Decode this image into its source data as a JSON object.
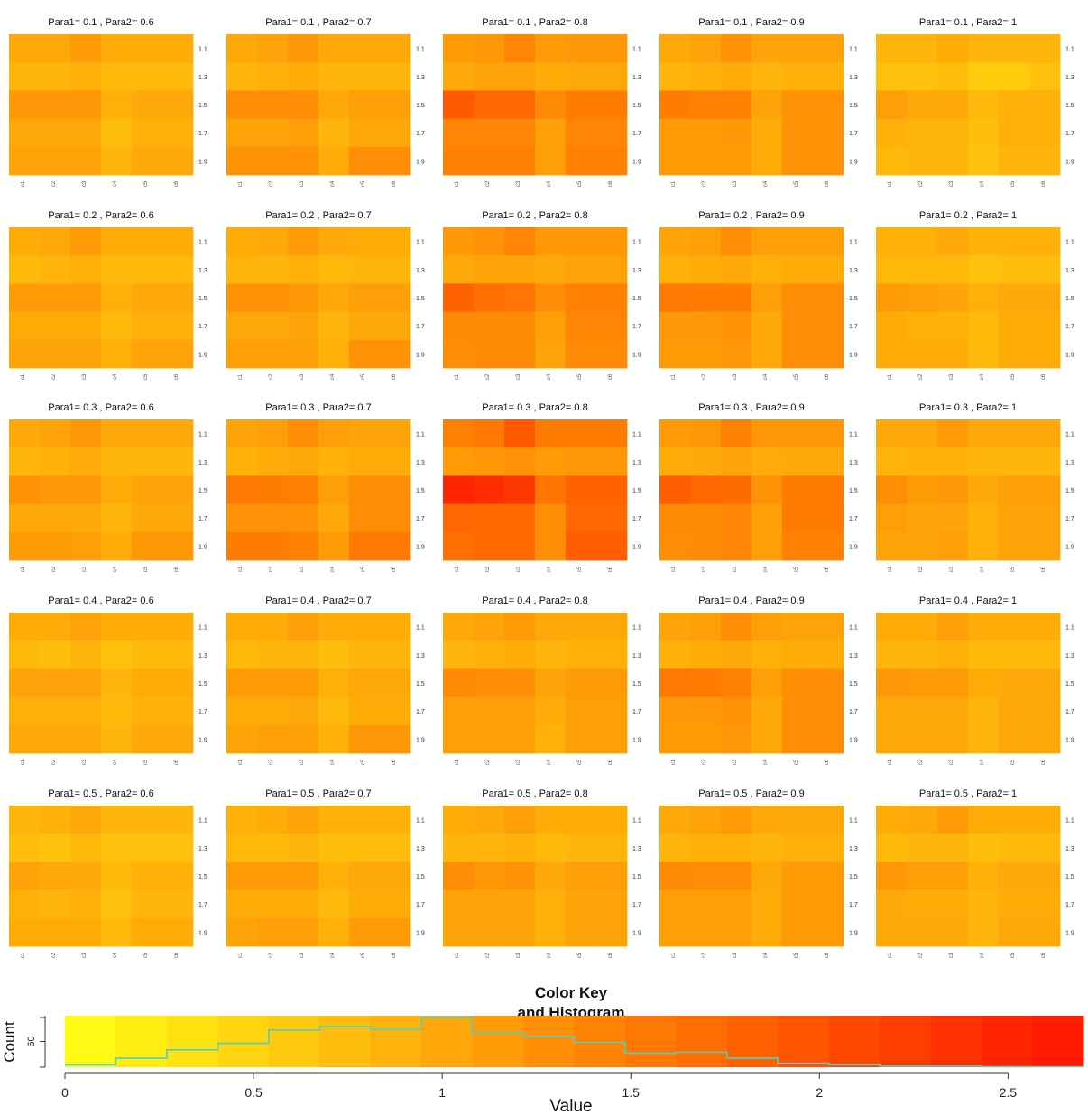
{
  "chart_data": {
    "type": "heatmap",
    "description_free": true,
    "para1_values": [
      "0.1",
      "0.2",
      "0.3",
      "0.4",
      "0.5"
    ],
    "para2_values": [
      "0.6",
      "0.7",
      "0.8",
      "0.9",
      "1"
    ],
    "panel_title_template": "Para1= {p1} , Para2= {p2}",
    "row_tick_labels": [
      "1.1",
      "1.3",
      "1.5",
      "1.7",
      "1.9"
    ],
    "col_tick_labels": [
      "c1",
      "c2",
      "c3",
      "c4",
      "c5",
      "c6"
    ],
    "panels": [
      {
        "p1": "0.1",
        "p2": "0.6",
        "values": [
          [
            1.0,
            1.0,
            1.15,
            0.95,
            0.95,
            0.95
          ],
          [
            0.85,
            0.85,
            0.9,
            0.8,
            0.8,
            0.8
          ],
          [
            1.2,
            1.2,
            1.2,
            0.9,
            1.0,
            1.0
          ],
          [
            1.0,
            1.0,
            1.0,
            0.75,
            0.9,
            0.9
          ],
          [
            1.05,
            1.05,
            1.05,
            0.85,
            1.0,
            1.0
          ]
        ]
      },
      {
        "p1": "0.1",
        "p2": "0.7",
        "values": [
          [
            1.0,
            1.05,
            1.2,
            1.0,
            1.0,
            1.0
          ],
          [
            0.85,
            0.9,
            0.95,
            0.85,
            0.85,
            0.85
          ],
          [
            1.3,
            1.3,
            1.3,
            1.0,
            1.1,
            1.1
          ],
          [
            1.05,
            1.05,
            1.1,
            0.85,
            1.0,
            1.0
          ],
          [
            1.25,
            1.25,
            1.25,
            0.95,
            1.3,
            1.3
          ]
        ]
      },
      {
        "p1": "0.1",
        "p2": "0.8",
        "values": [
          [
            1.15,
            1.2,
            1.4,
            1.15,
            1.2,
            1.2
          ],
          [
            1.0,
            1.05,
            1.05,
            0.95,
            1.0,
            1.0
          ],
          [
            1.9,
            1.75,
            1.75,
            1.35,
            1.5,
            1.5
          ],
          [
            1.4,
            1.4,
            1.4,
            1.1,
            1.4,
            1.4
          ],
          [
            1.45,
            1.45,
            1.45,
            1.1,
            1.45,
            1.45
          ]
        ]
      },
      {
        "p1": "0.1",
        "p2": "0.9",
        "values": [
          [
            1.0,
            1.05,
            1.25,
            1.05,
            1.05,
            1.05
          ],
          [
            0.85,
            0.9,
            0.95,
            0.85,
            0.9,
            0.9
          ],
          [
            1.5,
            1.45,
            1.45,
            1.05,
            1.25,
            1.25
          ],
          [
            1.15,
            1.15,
            1.2,
            0.95,
            1.25,
            1.25
          ],
          [
            1.15,
            1.15,
            1.15,
            0.95,
            1.25,
            1.25
          ]
        ]
      },
      {
        "p1": "0.1",
        "p2": "1",
        "values": [
          [
            0.85,
            0.85,
            0.95,
            0.85,
            0.85,
            0.85
          ],
          [
            0.7,
            0.7,
            0.75,
            0.6,
            0.6,
            0.7
          ],
          [
            1.1,
            1.0,
            1.0,
            0.8,
            0.9,
            0.9
          ],
          [
            0.9,
            0.85,
            0.85,
            0.75,
            0.9,
            0.9
          ],
          [
            0.8,
            0.85,
            0.85,
            0.7,
            0.85,
            0.85
          ]
        ]
      },
      {
        "p1": "0.2",
        "p2": "0.6",
        "values": [
          [
            0.95,
            1.0,
            1.15,
            0.95,
            0.95,
            0.95
          ],
          [
            0.8,
            0.85,
            0.9,
            0.8,
            0.8,
            0.8
          ],
          [
            1.15,
            1.15,
            1.15,
            0.9,
            1.0,
            1.0
          ],
          [
            0.95,
            0.95,
            0.95,
            0.8,
            0.9,
            0.9
          ],
          [
            1.05,
            1.05,
            1.05,
            0.9,
            1.05,
            1.05
          ]
        ]
      },
      {
        "p1": "0.2",
        "p2": "0.7",
        "values": [
          [
            0.95,
            1.0,
            1.15,
            1.0,
            0.95,
            0.95
          ],
          [
            0.85,
            0.85,
            0.9,
            0.8,
            0.85,
            0.85
          ],
          [
            1.25,
            1.25,
            1.2,
            1.0,
            1.1,
            1.1
          ],
          [
            1.0,
            1.0,
            1.05,
            0.85,
            1.0,
            1.0
          ],
          [
            1.1,
            1.1,
            1.1,
            0.9,
            1.25,
            1.25
          ]
        ]
      },
      {
        "p1": "0.2",
        "p2": "0.8",
        "values": [
          [
            1.2,
            1.25,
            1.4,
            1.2,
            1.2,
            1.2
          ],
          [
            1.0,
            1.05,
            1.05,
            1.0,
            1.05,
            1.05
          ],
          [
            1.8,
            1.65,
            1.6,
            1.3,
            1.45,
            1.45
          ],
          [
            1.35,
            1.35,
            1.35,
            1.1,
            1.4,
            1.4
          ],
          [
            1.3,
            1.35,
            1.35,
            1.05,
            1.35,
            1.35
          ]
        ]
      },
      {
        "p1": "0.2",
        "p2": "0.9",
        "values": [
          [
            1.05,
            1.1,
            1.3,
            1.1,
            1.1,
            1.1
          ],
          [
            0.9,
            0.95,
            1.0,
            0.9,
            0.95,
            0.95
          ],
          [
            1.55,
            1.5,
            1.5,
            1.1,
            1.3,
            1.3
          ],
          [
            1.2,
            1.2,
            1.25,
            1.0,
            1.3,
            1.3
          ],
          [
            1.15,
            1.15,
            1.2,
            1.0,
            1.3,
            1.3
          ]
        ]
      },
      {
        "p1": "0.2",
        "p2": "1",
        "values": [
          [
            0.9,
            0.9,
            1.0,
            0.9,
            0.9,
            0.9
          ],
          [
            0.8,
            0.8,
            0.8,
            0.7,
            0.75,
            0.75
          ],
          [
            1.15,
            1.1,
            1.05,
            0.9,
            1.0,
            1.0
          ],
          [
            0.95,
            0.9,
            0.9,
            0.8,
            0.95,
            0.95
          ],
          [
            0.95,
            0.95,
            0.95,
            0.8,
            0.95,
            0.95
          ]
        ]
      },
      {
        "p1": "0.3",
        "p2": "0.6",
        "values": [
          [
            1.0,
            1.05,
            1.2,
            1.0,
            1.0,
            1.0
          ],
          [
            0.85,
            0.9,
            0.95,
            0.85,
            0.85,
            0.85
          ],
          [
            1.25,
            1.2,
            1.2,
            0.95,
            1.05,
            1.05
          ],
          [
            1.0,
            1.0,
            1.0,
            0.85,
            1.0,
            1.0
          ],
          [
            1.15,
            1.15,
            1.1,
            0.95,
            1.2,
            1.2
          ]
        ]
      },
      {
        "p1": "0.3",
        "p2": "0.7",
        "values": [
          [
            1.05,
            1.1,
            1.3,
            1.1,
            1.05,
            1.05
          ],
          [
            0.9,
            0.95,
            1.0,
            0.9,
            0.95,
            0.95
          ],
          [
            1.55,
            1.5,
            1.45,
            1.1,
            1.3,
            1.3
          ],
          [
            1.25,
            1.25,
            1.25,
            1.0,
            1.3,
            1.3
          ],
          [
            1.5,
            1.5,
            1.45,
            1.15,
            1.55,
            1.55
          ]
        ]
      },
      {
        "p1": "0.3",
        "p2": "0.8",
        "values": [
          [
            1.45,
            1.55,
            1.9,
            1.5,
            1.5,
            1.5
          ],
          [
            1.15,
            1.2,
            1.25,
            1.15,
            1.2,
            1.2
          ],
          [
            2.5,
            2.4,
            2.3,
            1.6,
            1.8,
            1.8
          ],
          [
            1.75,
            1.7,
            1.7,
            1.3,
            1.75,
            1.75
          ],
          [
            1.65,
            1.7,
            1.7,
            1.3,
            1.85,
            1.85
          ]
        ]
      },
      {
        "p1": "0.3",
        "p2": "0.9",
        "values": [
          [
            1.15,
            1.2,
            1.45,
            1.2,
            1.2,
            1.2
          ],
          [
            0.95,
            1.0,
            1.05,
            0.95,
            1.0,
            1.0
          ],
          [
            1.85,
            1.75,
            1.7,
            1.25,
            1.5,
            1.5
          ],
          [
            1.35,
            1.35,
            1.4,
            1.1,
            1.5,
            1.5
          ],
          [
            1.3,
            1.35,
            1.4,
            1.1,
            1.45,
            1.45
          ]
        ]
      },
      {
        "p1": "0.3",
        "p2": "1",
        "values": [
          [
            1.0,
            1.0,
            1.15,
            1.0,
            1.0,
            1.0
          ],
          [
            0.85,
            0.9,
            0.9,
            0.85,
            0.85,
            0.85
          ],
          [
            1.3,
            1.15,
            1.2,
            1.0,
            1.1,
            1.1
          ],
          [
            1.1,
            1.05,
            1.05,
            0.9,
            1.05,
            1.05
          ],
          [
            1.05,
            1.05,
            1.1,
            0.9,
            1.05,
            1.05
          ]
        ]
      },
      {
        "p1": "0.4",
        "p2": "0.6",
        "values": [
          [
            0.95,
            0.95,
            1.05,
            0.95,
            0.95,
            0.95
          ],
          [
            0.8,
            0.75,
            0.85,
            0.7,
            0.8,
            0.8
          ],
          [
            1.05,
            1.05,
            1.05,
            0.85,
            0.95,
            0.95
          ],
          [
            0.9,
            0.9,
            0.9,
            0.8,
            0.9,
            0.9
          ],
          [
            1.0,
            1.0,
            1.0,
            0.85,
            1.0,
            1.0
          ]
        ]
      },
      {
        "p1": "0.4",
        "p2": "0.7",
        "values": [
          [
            0.95,
            0.95,
            1.1,
            0.95,
            0.95,
            0.95
          ],
          [
            0.8,
            0.85,
            0.85,
            0.75,
            0.85,
            0.85
          ],
          [
            1.15,
            1.15,
            1.15,
            0.9,
            1.0,
            1.0
          ],
          [
            0.95,
            0.95,
            1.0,
            0.8,
            0.95,
            0.95
          ],
          [
            1.05,
            1.1,
            1.1,
            0.9,
            1.2,
            1.2
          ]
        ]
      },
      {
        "p1": "0.4",
        "p2": "0.8",
        "values": [
          [
            1.0,
            1.05,
            1.15,
            1.0,
            1.0,
            1.0
          ],
          [
            0.85,
            0.9,
            0.95,
            0.85,
            0.9,
            0.9
          ],
          [
            1.35,
            1.3,
            1.3,
            1.05,
            1.15,
            1.15
          ],
          [
            1.1,
            1.1,
            1.1,
            0.95,
            1.1,
            1.1
          ],
          [
            1.1,
            1.1,
            1.1,
            0.9,
            1.1,
            1.1
          ]
        ]
      },
      {
        "p1": "0.4",
        "p2": "0.9",
        "values": [
          [
            1.05,
            1.1,
            1.3,
            1.1,
            1.05,
            1.05
          ],
          [
            0.9,
            0.95,
            1.0,
            0.9,
            0.95,
            0.95
          ],
          [
            1.55,
            1.5,
            1.45,
            1.1,
            1.3,
            1.3
          ],
          [
            1.2,
            1.2,
            1.25,
            1.0,
            1.3,
            1.3
          ],
          [
            1.15,
            1.15,
            1.2,
            1.0,
            1.3,
            1.3
          ]
        ]
      },
      {
        "p1": "0.4",
        "p2": "1",
        "values": [
          [
            0.95,
            0.95,
            1.1,
            0.95,
            0.95,
            0.95
          ],
          [
            0.85,
            0.85,
            0.9,
            0.8,
            0.8,
            0.8
          ],
          [
            1.2,
            1.15,
            1.15,
            0.95,
            1.0,
            1.0
          ],
          [
            1.0,
            1.0,
            1.0,
            0.85,
            1.0,
            1.0
          ],
          [
            1.0,
            1.0,
            1.0,
            0.85,
            1.0,
            1.0
          ]
        ]
      },
      {
        "p1": "0.5",
        "p2": "0.6",
        "values": [
          [
            0.85,
            0.9,
            1.0,
            0.85,
            0.85,
            0.85
          ],
          [
            0.75,
            0.7,
            0.8,
            0.7,
            0.7,
            0.7
          ],
          [
            1.05,
            1.0,
            1.0,
            0.8,
            0.9,
            0.9
          ],
          [
            0.9,
            0.85,
            0.9,
            0.7,
            0.85,
            0.85
          ],
          [
            0.95,
            0.95,
            0.95,
            0.8,
            0.95,
            0.95
          ]
        ]
      },
      {
        "p1": "0.5",
        "p2": "0.7",
        "values": [
          [
            0.9,
            0.95,
            1.05,
            0.9,
            0.9,
            0.9
          ],
          [
            0.8,
            0.8,
            0.85,
            0.75,
            0.75,
            0.75
          ],
          [
            1.15,
            1.15,
            1.15,
            0.9,
            1.0,
            1.0
          ],
          [
            0.95,
            0.95,
            0.95,
            0.8,
            0.95,
            0.95
          ],
          [
            1.05,
            1.1,
            1.1,
            0.9,
            1.15,
            1.15
          ]
        ]
      },
      {
        "p1": "0.5",
        "p2": "0.8",
        "values": [
          [
            0.95,
            1.0,
            1.1,
            0.95,
            0.95,
            0.95
          ],
          [
            0.85,
            0.85,
            0.9,
            0.8,
            0.85,
            0.85
          ],
          [
            1.3,
            1.2,
            1.25,
            1.0,
            1.1,
            1.1
          ],
          [
            1.05,
            1.05,
            1.05,
            0.9,
            1.05,
            1.05
          ],
          [
            1.05,
            1.05,
            1.05,
            0.9,
            1.05,
            1.05
          ]
        ]
      },
      {
        "p1": "0.5",
        "p2": "0.9",
        "values": [
          [
            1.0,
            1.05,
            1.15,
            1.0,
            1.0,
            1.0
          ],
          [
            0.85,
            0.9,
            0.9,
            0.85,
            0.9,
            0.9
          ],
          [
            1.35,
            1.3,
            1.3,
            1.0,
            1.15,
            1.15
          ],
          [
            1.1,
            1.1,
            1.1,
            0.95,
            1.15,
            1.15
          ],
          [
            1.1,
            1.1,
            1.1,
            0.95,
            1.15,
            1.15
          ]
        ]
      },
      {
        "p1": "0.5",
        "p2": "1",
        "values": [
          [
            0.95,
            1.0,
            1.15,
            0.95,
            0.95,
            0.95
          ],
          [
            0.8,
            0.85,
            0.85,
            0.75,
            0.8,
            0.8
          ],
          [
            1.2,
            1.1,
            1.1,
            0.9,
            1.0,
            1.0
          ],
          [
            1.0,
            0.95,
            0.95,
            0.85,
            0.95,
            0.95
          ],
          [
            1.0,
            1.0,
            1.0,
            0.85,
            1.0,
            1.0
          ]
        ]
      }
    ],
    "color_key": {
      "title_line1": "Color Key",
      "title_line2": "and Histogram",
      "xlabel": "Value",
      "ylabel": "Count",
      "ytick_label": "60",
      "xlim": [
        0,
        2.7
      ],
      "xticks": [
        0,
        0.5,
        1,
        1.5,
        2,
        2.5
      ],
      "xtick_labels": [
        "0",
        "0.5",
        "1",
        "1.5",
        "2",
        "2.5"
      ],
      "ylim": [
        0,
        100
      ],
      "histogram_counts": [
        5,
        18,
        35,
        48,
        75,
        82,
        76,
        100,
        70,
        62,
        50,
        28,
        30,
        18,
        8,
        5,
        2,
        2,
        1,
        1
      ]
    }
  }
}
